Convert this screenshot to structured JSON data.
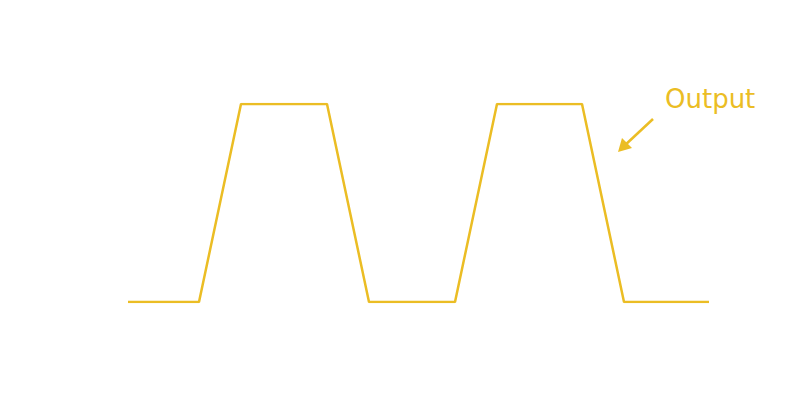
{
  "chart_data": {
    "type": "line",
    "x": [
      0,
      7.1,
      11.3,
      19.9,
      24.1,
      32.7,
      36.9,
      45.4,
      49.6,
      58.1
    ],
    "series": [
      {
        "name": "Output",
        "color": "#ebbd24",
        "values": [
          0,
          0,
          1,
          1,
          0,
          0,
          1,
          1,
          0,
          0
        ]
      }
    ],
    "xlim": [
      0,
      58.1
    ],
    "ylim": [
      0,
      1
    ],
    "grid": false,
    "tick_labels": false,
    "marker": "none",
    "line_style": "solid",
    "annotations": [
      {
        "text": "Output",
        "color": "#ebbd24"
      }
    ]
  }
}
